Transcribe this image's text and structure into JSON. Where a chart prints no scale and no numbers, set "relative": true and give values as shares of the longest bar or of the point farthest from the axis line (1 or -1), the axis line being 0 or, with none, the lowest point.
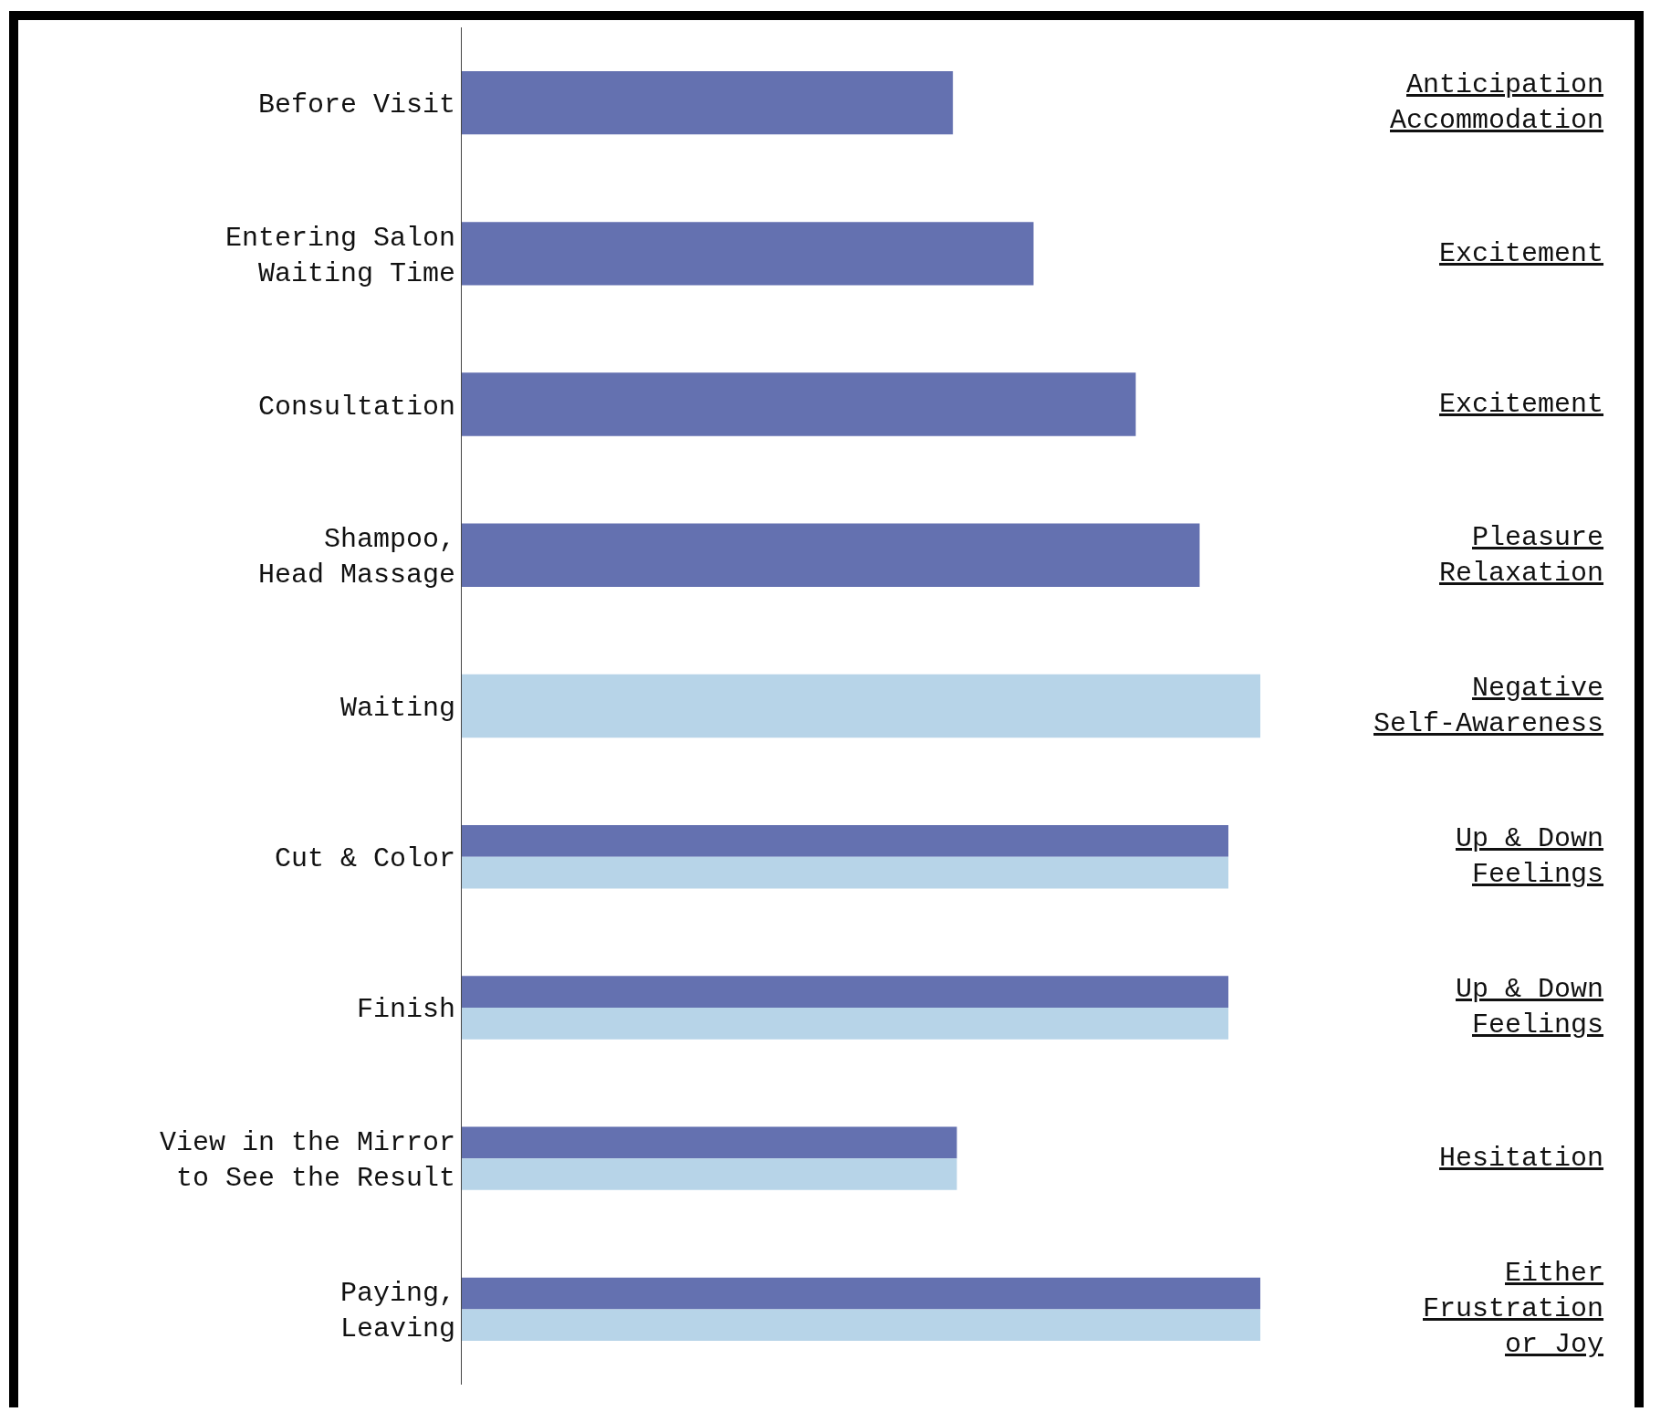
{
  "chart_data": {
    "type": "bar",
    "orientation": "horizontal",
    "relative": true,
    "categories": [
      "Before Visit",
      "Entering Salon\nWaiting Time",
      "Consultation",
      "Shampoo,\nHead Massage",
      "Waiting",
      "Cut & Color",
      "Finish",
      "View in the Mirror\nto See the Result",
      "Paying,\nLeaving"
    ],
    "series": [
      {
        "color": "#6471b0",
        "values": [
          0.615,
          0.716,
          0.844,
          0.924,
          null,
          0.96,
          0.96,
          0.62,
          1
        ]
      },
      {
        "color": "#b7d4e8",
        "values": [
          null,
          null,
          null,
          null,
          1,
          0.96,
          0.96,
          0.62,
          1
        ]
      }
    ],
    "annotations": [
      "Anticipation\nAccommodation",
      "Excitement",
      "Excitement",
      "Pleasure\nRelaxation",
      "Negative\nSelf-Awareness",
      "Up & Down\nFeelings",
      "Up & Down\nFeelings",
      "Hesitation",
      "Either\nFrustration\nor Joy"
    ]
  }
}
